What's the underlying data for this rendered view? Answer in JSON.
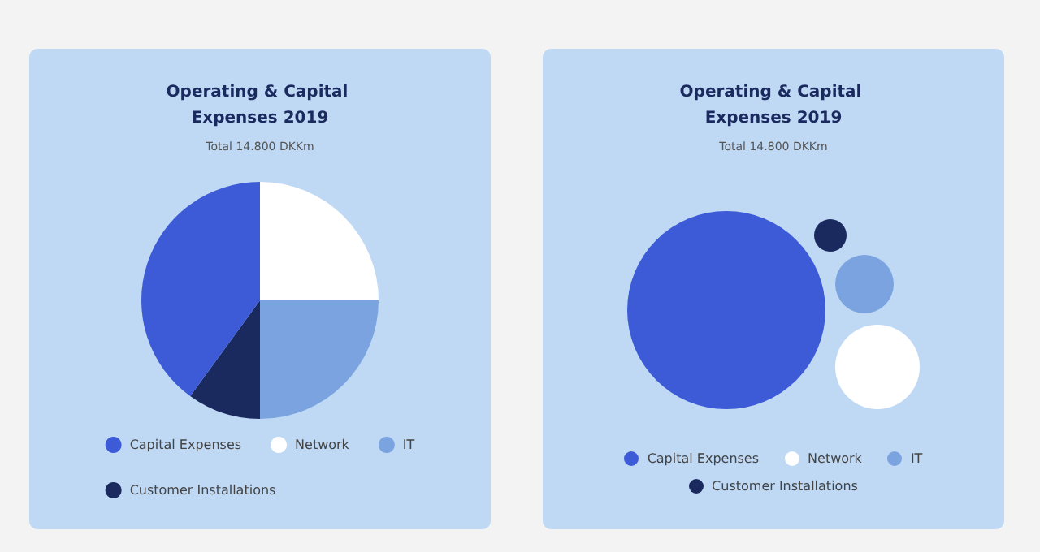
{
  "chart_data": [
    {
      "type": "pie",
      "title": "Operating & Capital Expenses 2019",
      "subtitle": "Total 14.800 DKKm",
      "categories": [
        "Network",
        "IT",
        "Customer Installations",
        "Capital Expenses"
      ],
      "values": [
        25,
        25,
        10,
        40
      ],
      "colors": [
        "#ffffff",
        "#7aa3e0",
        "#1b2a5e",
        "#3d5bd6"
      ],
      "legend": "bottom"
    },
    {
      "type": "other",
      "title": "Operating & Capital Expenses 2019",
      "subtitle": "Total 14.800 DKKm",
      "categories": [
        "Capital Expenses",
        "Network",
        "IT",
        "Customer Installations"
      ],
      "colors": [
        "#3d5bd6",
        "#ffffff",
        "#7aa3e0",
        "#1b2a5e"
      ]
    }
  ]
}
